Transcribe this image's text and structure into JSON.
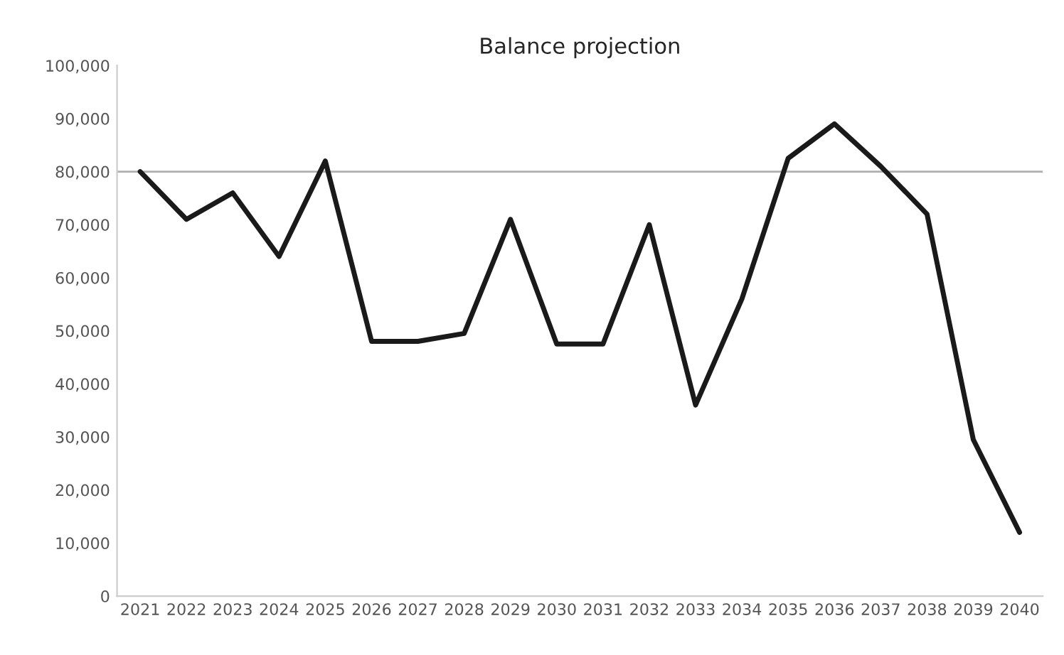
{
  "chart_data": {
    "type": "line",
    "title": "Balance projection",
    "categories": [
      "2021",
      "2022",
      "2023",
      "2024",
      "2025",
      "2026",
      "2027",
      "2028",
      "2029",
      "2030",
      "2031",
      "2032",
      "2033",
      "2034",
      "2035",
      "2036",
      "2037",
      "2038",
      "2039",
      "2040"
    ],
    "series": [
      {
        "color": "#1a1a1a",
        "values": [
          80000,
          71000,
          76000,
          64000,
          82000,
          48000,
          48000,
          49500,
          71000,
          47500,
          47500,
          70000,
          36000,
          56000,
          82500,
          89000,
          81000,
          72000,
          29500,
          12000
        ]
      }
    ],
    "ylim": [
      0,
      100000
    ],
    "yticks": [
      {
        "value": 0,
        "label": "0"
      },
      {
        "value": 10000,
        "label": "10,000"
      },
      {
        "value": 20000,
        "label": "20,000"
      },
      {
        "value": 30000,
        "label": "30,000"
      },
      {
        "value": 40000,
        "label": "40,000"
      },
      {
        "value": 50000,
        "label": "50,000"
      },
      {
        "value": 60000,
        "label": "60,000"
      },
      {
        "value": 70000,
        "label": "70,000"
      },
      {
        "value": 80000,
        "label": "80,000"
      },
      {
        "value": 90000,
        "label": "90,000"
      },
      {
        "value": 100000,
        "label": "100,000"
      }
    ],
    "ref_lines": [
      {
        "axis": "y",
        "value": 80000,
        "color": "#b0b0b0"
      }
    ],
    "grid": false,
    "legend": false
  }
}
